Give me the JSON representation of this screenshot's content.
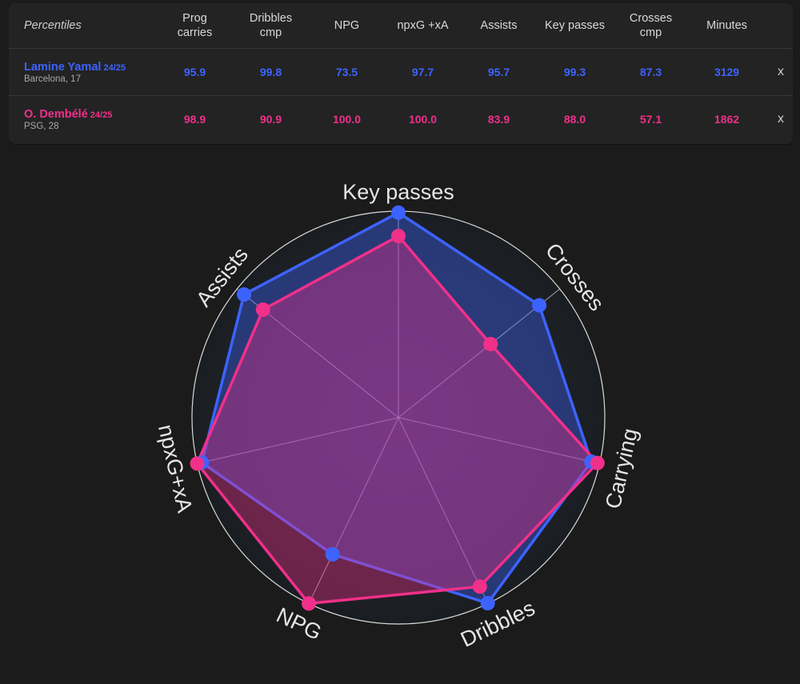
{
  "table": {
    "corner_label": "Percentiles",
    "columns": [
      {
        "line1": "Prog",
        "line2": "carries"
      },
      {
        "line1": "Dribbles",
        "line2": "cmp"
      },
      {
        "line1": "NPG",
        "line2": ""
      },
      {
        "line1": "npxG +xA",
        "line2": ""
      },
      {
        "line1": "Assists",
        "line2": ""
      },
      {
        "line1": "Key passes",
        "line2": ""
      },
      {
        "line1": "Crosses",
        "line2": "cmp"
      },
      {
        "line1": "Minutes",
        "line2": ""
      }
    ],
    "rows": [
      {
        "name": "Lamine Yamal",
        "season": "24/25",
        "meta": "Barcelona, 17",
        "color": "#3d63ff",
        "values": [
          "95.9",
          "99.8",
          "73.5",
          "97.7",
          "95.7",
          "99.3",
          "87.3",
          "3129"
        ],
        "remove_label": "x"
      },
      {
        "name": "O. Dembélé",
        "season": "24/25",
        "meta": "PSG, 28",
        "color": "#f0308a",
        "values": [
          "98.9",
          "90.9",
          "100.0",
          "100.0",
          "83.9",
          "88.0",
          "57.1",
          "1862"
        ],
        "remove_label": "x"
      }
    ]
  },
  "chart_data": {
    "type": "radar",
    "axes": [
      "Key passes",
      "Crosses",
      "Carrying",
      "Dribbles",
      "NPG",
      "npxG+xA",
      "Assists"
    ],
    "range": [
      0,
      100
    ],
    "series": [
      {
        "name": "Lamine Yamal",
        "color": "#3d63ff",
        "values": [
          99.3,
          87.3,
          95.9,
          99.8,
          73.5,
          97.7,
          95.7
        ]
      },
      {
        "name": "O. Dembélé",
        "color": "#f0308a",
        "values": [
          88.0,
          57.1,
          98.9,
          90.9,
          100.0,
          100.0,
          83.9
        ]
      }
    ]
  }
}
